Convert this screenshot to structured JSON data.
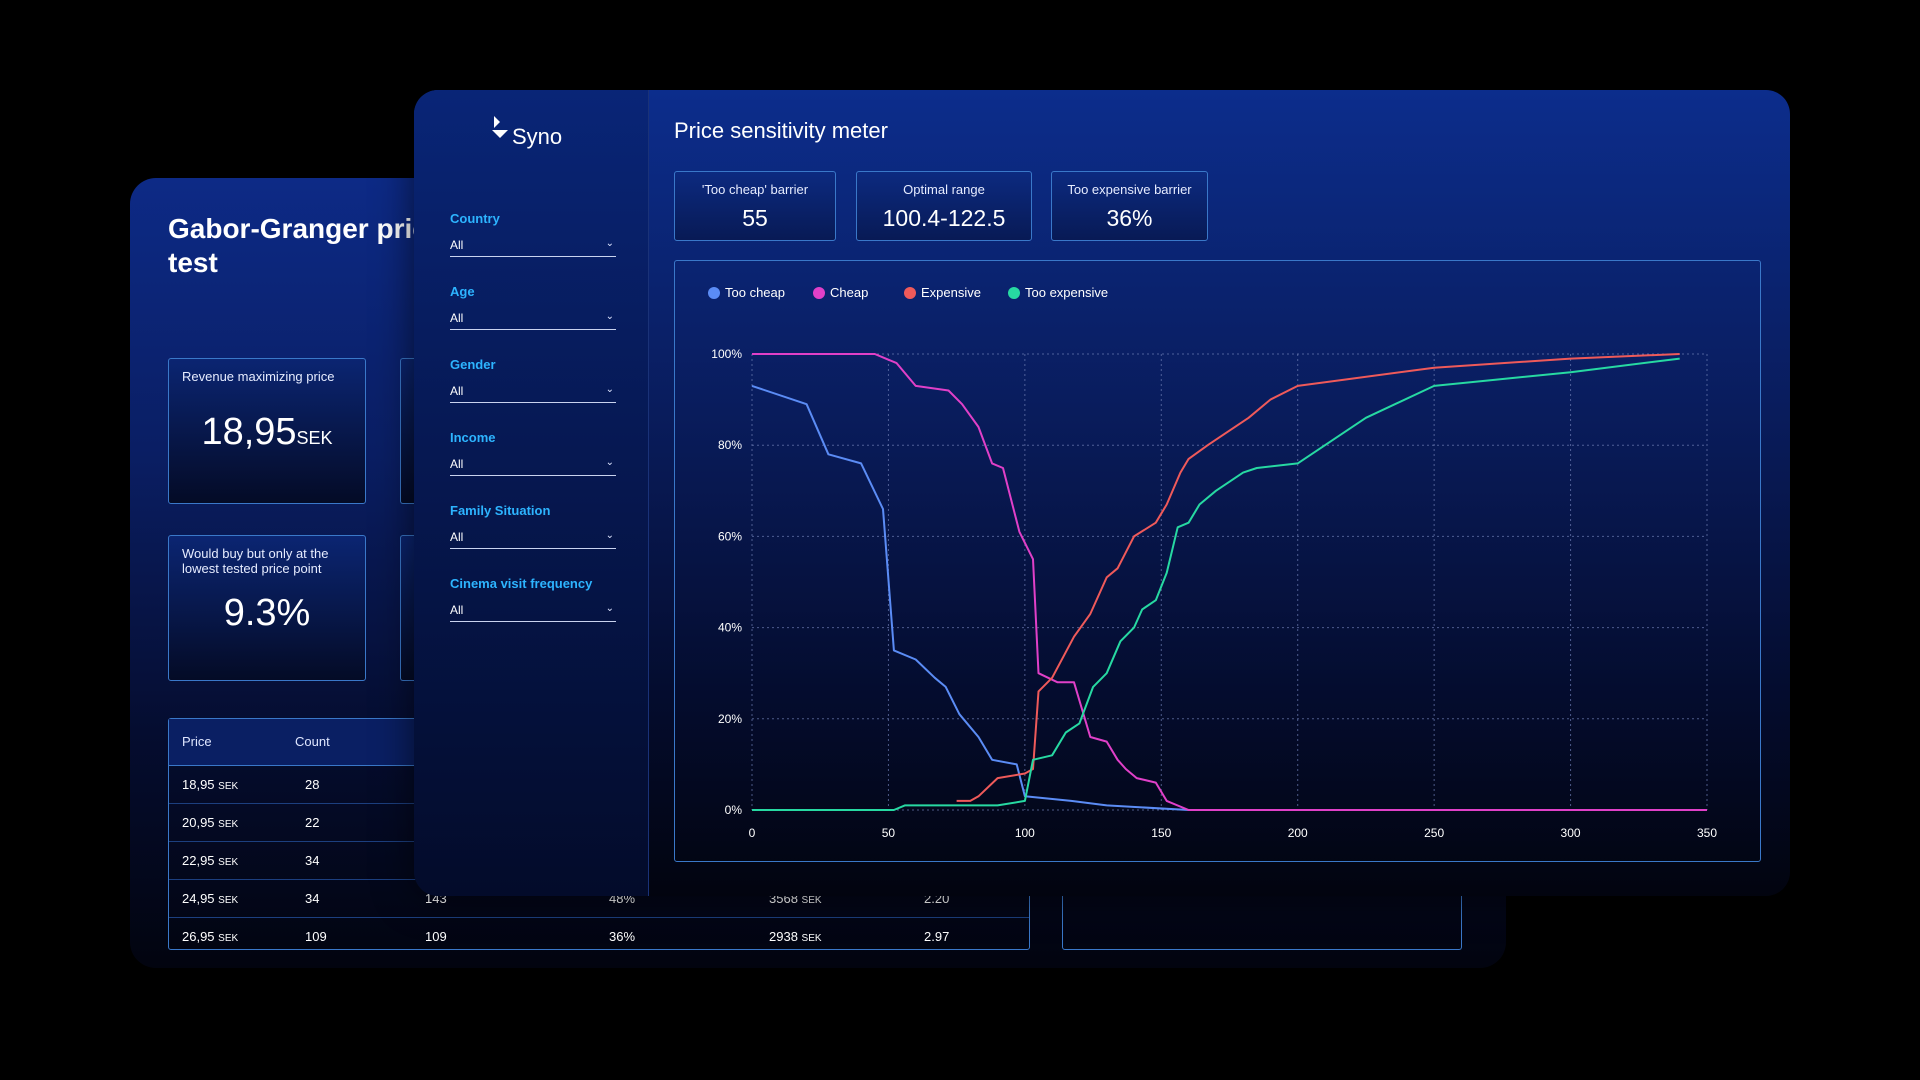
{
  "gabor": {
    "title": "Gabor-Granger price test",
    "kpi1": {
      "label": "Revenue maximizing price",
      "value": "18,95",
      "unit": "SEK"
    },
    "kpi2": {
      "label": "Would buy but only at the lowest tested price point",
      "value": "9.3%"
    },
    "table": {
      "headers": [
        "Price",
        "Count"
      ],
      "rows": [
        {
          "price": "18,95",
          "unit": "SEK",
          "count": "28",
          "c3": "",
          "c4": "",
          "c5": "",
          "c5unit": "",
          "c6": ""
        },
        {
          "price": "20,95",
          "unit": "SEK",
          "count": "22",
          "c3": "",
          "c4": "",
          "c5": "",
          "c5unit": "",
          "c6": ""
        },
        {
          "price": "22,95",
          "unit": "SEK",
          "count": "34",
          "c3": "",
          "c4": "",
          "c5": "",
          "c5unit": "",
          "c6": ""
        },
        {
          "price": "24,95",
          "unit": "SEK",
          "count": "34",
          "c3": "143",
          "c4": "48%",
          "c5": "3568",
          "c5unit": "SEK",
          "c6": "2.20"
        },
        {
          "price": "26,95",
          "unit": "SEK",
          "count": "109",
          "c3": "109",
          "c4": "36%",
          "c5": "2938",
          "c5unit": "SEK",
          "c6": "2.97"
        }
      ]
    }
  },
  "app": {
    "logo_text": "Syno"
  },
  "filters": [
    {
      "label": "Country",
      "value": "All"
    },
    {
      "label": "Age",
      "value": "All"
    },
    {
      "label": "Gender",
      "value": "All"
    },
    {
      "label": "Income",
      "value": "All"
    },
    {
      "label": "Family Situation",
      "value": "All"
    },
    {
      "label": "Cinema visit frequency",
      "value": "All"
    }
  ],
  "psm": {
    "title": "Price sensitivity meter",
    "kpis": [
      {
        "label": "'Too cheap' barrier",
        "value": "55"
      },
      {
        "label": "Optimal range",
        "value": "100.4-122.5"
      },
      {
        "label": "Too expensive barrier",
        "value": "36%"
      }
    ]
  },
  "chart_data": {
    "type": "line",
    "title": "",
    "xlabel": "",
    "ylabel": "",
    "xlim": [
      0,
      350
    ],
    "ylim": [
      0,
      100
    ],
    "x_ticks": [
      0,
      50,
      100,
      150,
      200,
      250,
      300,
      350
    ],
    "y_ticks": [
      0,
      20,
      40,
      60,
      80,
      100
    ],
    "y_tick_labels": [
      "0%",
      "20%",
      "40%",
      "60%",
      "80%",
      "100%"
    ],
    "grid": true,
    "legend_position": "top-left",
    "series": [
      {
        "name": "Too cheap",
        "color": "#5b8cf5",
        "points": [
          [
            0,
            93
          ],
          [
            20,
            89
          ],
          [
            28,
            78
          ],
          [
            40,
            76
          ],
          [
            48,
            66
          ],
          [
            52,
            35
          ],
          [
            60,
            33
          ],
          [
            67,
            29
          ],
          [
            71,
            27
          ],
          [
            76,
            21
          ],
          [
            83,
            16
          ],
          [
            88,
            11
          ],
          [
            97,
            10
          ],
          [
            100,
            3
          ],
          [
            117,
            2
          ],
          [
            130,
            1
          ],
          [
            160,
            0
          ],
          [
            350,
            0
          ]
        ]
      },
      {
        "name": "Cheap",
        "color": "#e040c8",
        "points": [
          [
            0,
            100
          ],
          [
            45,
            100
          ],
          [
            49,
            99
          ],
          [
            53,
            98
          ],
          [
            60,
            93
          ],
          [
            72,
            92
          ],
          [
            77,
            89
          ],
          [
            83,
            84
          ],
          [
            88,
            76
          ],
          [
            92,
            75
          ],
          [
            98,
            61
          ],
          [
            103,
            55
          ],
          [
            105,
            30
          ],
          [
            112,
            28
          ],
          [
            118,
            28
          ],
          [
            124,
            16
          ],
          [
            130,
            15
          ],
          [
            134,
            11
          ],
          [
            137,
            9
          ],
          [
            141,
            7
          ],
          [
            148,
            6
          ],
          [
            152,
            2
          ],
          [
            160,
            0
          ],
          [
            350,
            0
          ]
        ]
      },
      {
        "name": "Expensive",
        "color": "#ef5a5a",
        "points": [
          [
            75,
            2
          ],
          [
            80,
            2
          ],
          [
            83,
            3
          ],
          [
            90,
            7
          ],
          [
            100,
            8
          ],
          [
            103,
            9
          ],
          [
            105,
            26
          ],
          [
            110,
            29
          ],
          [
            118,
            38
          ],
          [
            124,
            43
          ],
          [
            130,
            51
          ],
          [
            134,
            53
          ],
          [
            140,
            60
          ],
          [
            148,
            63
          ],
          [
            152,
            67
          ],
          [
            157,
            74
          ],
          [
            160,
            77
          ],
          [
            167,
            80
          ],
          [
            172,
            82
          ],
          [
            182,
            86
          ],
          [
            190,
            90
          ],
          [
            200,
            93
          ],
          [
            250,
            97
          ],
          [
            300,
            99
          ],
          [
            340,
            100
          ]
        ]
      },
      {
        "name": "Too expensive",
        "color": "#27d9a2",
        "points": [
          [
            0,
            0
          ],
          [
            45,
            0
          ],
          [
            52,
            0
          ],
          [
            56,
            1
          ],
          [
            75,
            1
          ],
          [
            90,
            1
          ],
          [
            100,
            2
          ],
          [
            103,
            11
          ],
          [
            110,
            12
          ],
          [
            115,
            17
          ],
          [
            120,
            19
          ],
          [
            125,
            27
          ],
          [
            130,
            30
          ],
          [
            135,
            37
          ],
          [
            140,
            40
          ],
          [
            143,
            44
          ],
          [
            148,
            46
          ],
          [
            152,
            52
          ],
          [
            156,
            62
          ],
          [
            160,
            63
          ],
          [
            164,
            67
          ],
          [
            170,
            70
          ],
          [
            180,
            74
          ],
          [
            185,
            75
          ],
          [
            200,
            76
          ],
          [
            225,
            86
          ],
          [
            250,
            93
          ],
          [
            300,
            96
          ],
          [
            340,
            99
          ]
        ]
      }
    ]
  }
}
